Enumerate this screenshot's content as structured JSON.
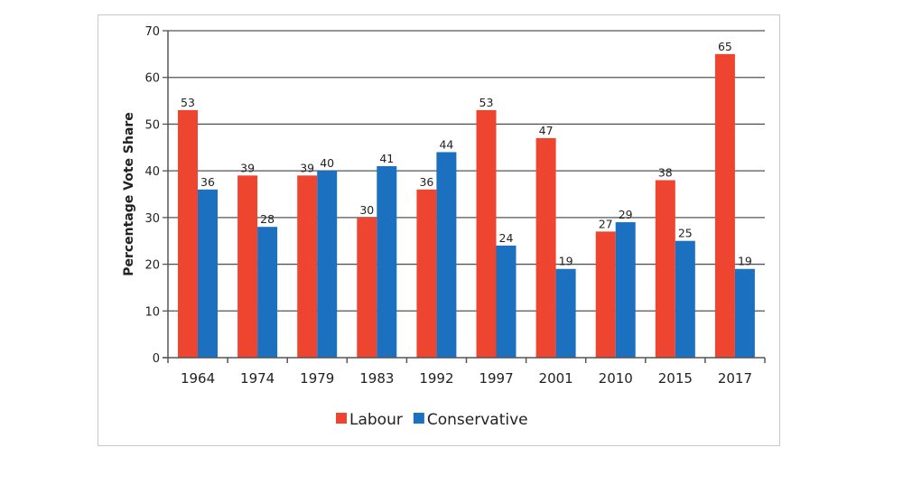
{
  "chart_data": {
    "type": "bar",
    "title": "",
    "xlabel": "",
    "ylabel": "Percentage Vote Share",
    "ylim": [
      0,
      70
    ],
    "yticks": [
      0,
      10,
      20,
      30,
      40,
      50,
      60,
      70
    ],
    "grid": true,
    "legend_placement": "bottom",
    "categories": [
      "1964",
      "1974",
      "1979",
      "1983",
      "1992",
      "1997",
      "2001",
      "2010",
      "2015",
      "2017"
    ],
    "series": [
      {
        "name": "Labour",
        "color": "#ee4530",
        "values": [
          53,
          39,
          39,
          30,
          36,
          53,
          47,
          27,
          38,
          65
        ]
      },
      {
        "name": "Conservative",
        "color": "#1b70c0",
        "values": [
          36,
          28,
          40,
          41,
          44,
          24,
          19,
          29,
          25,
          19
        ]
      }
    ]
  }
}
